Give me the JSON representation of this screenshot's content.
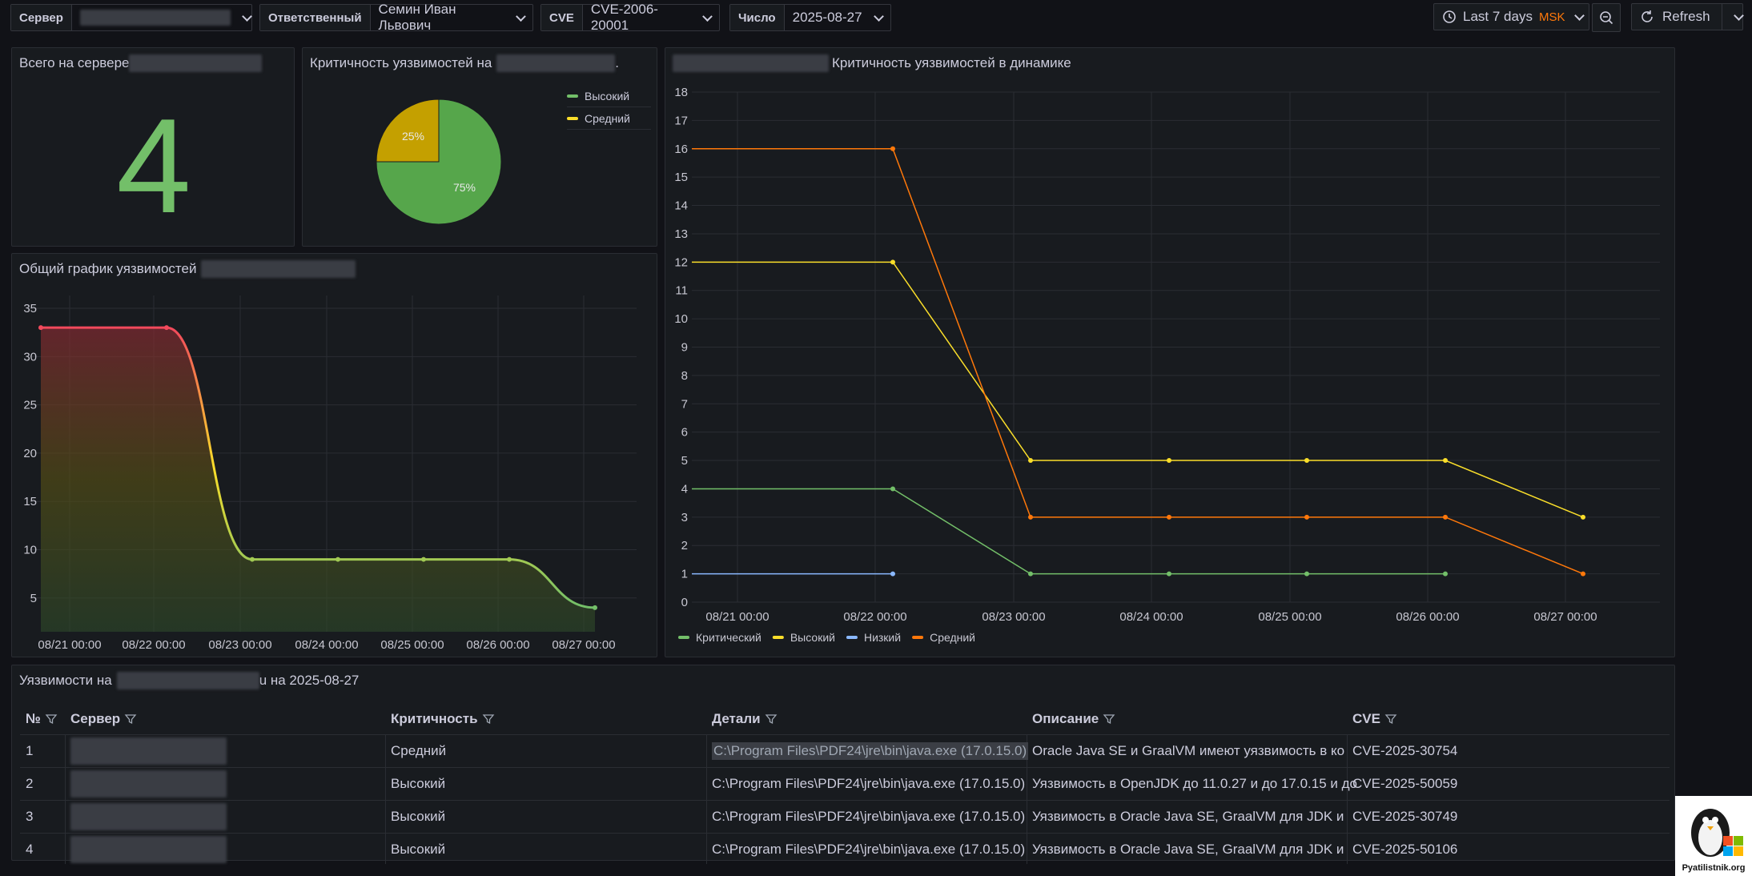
{
  "topbar": {
    "server_label": "Сервер",
    "responsible_label": "Ответственный",
    "responsible_value": "Семин Иван Львович",
    "cve_label": "CVE",
    "cve_value": "CVE-2006-20001",
    "date_label": "Число",
    "date_value": "2025-08-27",
    "time_range": "Last 7 days",
    "timezone": "MSK",
    "refresh_label": "Refresh"
  },
  "stat_panel": {
    "title": "Всего на сервере",
    "value": "4",
    "color": "#73bf69"
  },
  "pie_panel": {
    "title": "Критичность уязвимостей на",
    "title_suffix": ".",
    "legend": [
      "Высокий",
      "Средний"
    ],
    "chart_data": {
      "type": "pie",
      "slices": [
        {
          "name": "Высокий",
          "value": 75,
          "label": "75%",
          "color": "#56a64b"
        },
        {
          "name": "Средний",
          "value": 25,
          "label": "25%",
          "color": "#c4a000"
        }
      ]
    }
  },
  "area_panel": {
    "title": "Общий график уязвимостей",
    "chart_data": {
      "type": "area",
      "x": [
        "08/21 00:00",
        "08/22 00:00",
        "08/23 00:00",
        "08/24 00:00",
        "08/25 00:00",
        "08/26 00:00",
        "08/27 00:00"
      ],
      "points": [
        [
          "08/21 00:00",
          33
        ],
        [
          "08/22 00:00",
          33
        ],
        [
          "08/23 00:00",
          9
        ],
        [
          "08/24 00:00",
          9
        ],
        [
          "08/25 00:00",
          9
        ],
        [
          "08/26 00:00",
          9
        ],
        [
          "08/27 00:00",
          4
        ]
      ],
      "yticks": [
        5,
        10,
        15,
        20,
        25,
        30,
        35
      ],
      "ylim": [
        1.5,
        36
      ],
      "gradient": [
        "#f2495c",
        "#fade2a",
        "#73bf69"
      ]
    }
  },
  "line_panel": {
    "title": "Критичность уязвимостей в динамике",
    "chart_data": {
      "type": "line",
      "x": [
        "08/21 00:00",
        "08/22 00:00",
        "08/23 00:00",
        "08/24 00:00",
        "08/25 00:00",
        "08/26 00:00",
        "08/27 00:00"
      ],
      "yticks": [
        0,
        1,
        2,
        3,
        4,
        5,
        6,
        7,
        8,
        9,
        10,
        11,
        12,
        13,
        14,
        15,
        16,
        17,
        18
      ],
      "ylim": [
        0,
        18
      ],
      "series": [
        {
          "name": "Критический",
          "color": "#73bf69",
          "values": [
            4,
            4,
            1,
            1,
            1,
            1,
            null
          ]
        },
        {
          "name": "Высокий",
          "color": "#fade2a",
          "values": [
            12,
            12,
            5,
            5,
            5,
            5,
            3
          ]
        },
        {
          "name": "Низкий",
          "color": "#8ab8ff",
          "values": [
            1,
            1,
            null,
            null,
            null,
            null,
            null
          ]
        },
        {
          "name": "Средний",
          "color": "#ff780a",
          "values": [
            16,
            16,
            3,
            3,
            3,
            3,
            1
          ]
        }
      ]
    }
  },
  "table_panel": {
    "title_prefix": "Уязвимости на",
    "title_suffix": "u на 2025-08-27",
    "columns": [
      "№",
      "Сервер",
      "Критичность",
      "Детали",
      "Описание",
      "CVE"
    ],
    "rows": [
      {
        "num": "1",
        "severity": "Средний",
        "details": "C:\\Program Files\\PDF24\\jre\\bin\\java.exe (17.0.15.0)",
        "description": "Oracle Java SE и GraalVM имеют уязвимость в ко",
        "cve": "CVE-2025-30754"
      },
      {
        "num": "2",
        "severity": "Высокий",
        "details": "C:\\Program Files\\PDF24\\jre\\bin\\java.exe (17.0.15.0)",
        "description": "Уязвимость в OpenJDK до 11.0.27 и до 17.0.15 и до",
        "cve": "CVE-2025-50059"
      },
      {
        "num": "3",
        "severity": "Высокий",
        "details": "C:\\Program Files\\PDF24\\jre\\bin\\java.exe (17.0.15.0)",
        "description": "Уязвимость в Oracle Java SE, GraalVM для JDK и",
        "cve": "CVE-2025-30749"
      },
      {
        "num": "4",
        "severity": "Высокий",
        "details": "C:\\Program Files\\PDF24\\jre\\bin\\java.exe (17.0.15.0)",
        "description": "Уязвимость в Oracle Java SE, GraalVM для JDK и",
        "cve": "CVE-2025-50106"
      }
    ]
  },
  "watermark": {
    "text": "Pyatilistnik.org"
  }
}
